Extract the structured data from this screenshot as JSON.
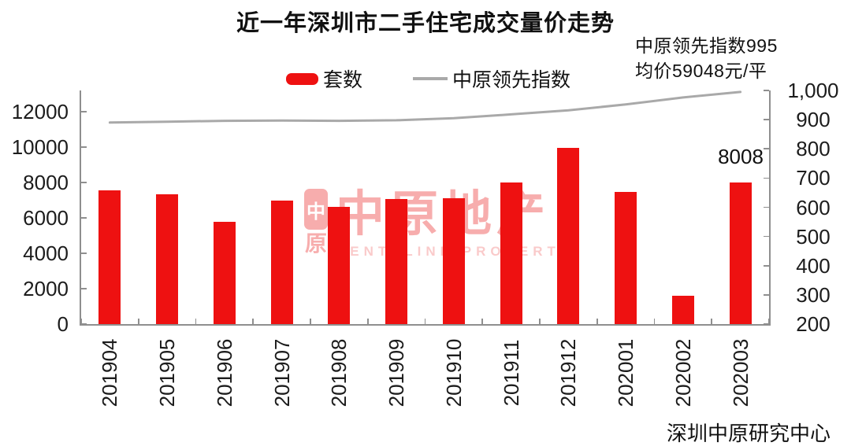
{
  "title": "近一年深圳市二手住宅成交量价走势",
  "annotations": {
    "line1": "中原领先指数995",
    "line2": "均价59048元/平",
    "last_bar_label": "8008"
  },
  "legend": [
    {
      "label": "套数",
      "type": "bar"
    },
    {
      "label": "中原领先指数",
      "type": "line"
    }
  ],
  "source": "深圳中原研究中心",
  "watermark": {
    "logo_top": "中",
    "logo_bottom": "原",
    "text": "中原地产",
    "subtext": "CENTALINE PROPERTY"
  },
  "colors": {
    "bar_red": "#ee1111",
    "line_gray": "#a9a9a9",
    "axis_gray": "#8f8f8f",
    "text_dark": "#1c1c1c",
    "watermark_pink": "rgba(236,50,50,0.40)",
    "watermark_pink_light": "rgba(236,50,50,0.26)"
  },
  "chart_data": {
    "type": "combo-bar-line",
    "title": "近一年深圳市二手住宅成交量价走势",
    "categories": [
      "201904",
      "201905",
      "201906",
      "201907",
      "201908",
      "201909",
      "201910",
      "201911",
      "201912",
      "202001",
      "202002",
      "202003"
    ],
    "series": [
      {
        "name": "套数",
        "type": "bar",
        "axis": "left",
        "values": [
          7540,
          7330,
          5800,
          7000,
          6630,
          7070,
          7100,
          8000,
          9950,
          7460,
          1600,
          8008
        ]
      },
      {
        "name": "中原领先指数",
        "type": "line",
        "axis": "right",
        "values": [
          890,
          893,
          896,
          897,
          896,
          898,
          905,
          918,
          932,
          952,
          976,
          995
        ]
      }
    ],
    "left_axis": {
      "min": 0,
      "max": 12000,
      "step": 2000,
      "plot_max": 13200,
      "labels": [
        "0",
        "2000",
        "4000",
        "6000",
        "8000",
        "10000",
        "12000"
      ]
    },
    "right_axis": {
      "min": 200,
      "max": 1000,
      "step": 100,
      "labels": [
        "200",
        "300",
        "400",
        "500",
        "600",
        "700",
        "800",
        "900",
        "1,000"
      ]
    },
    "grid": false,
    "legend_position": "top"
  }
}
